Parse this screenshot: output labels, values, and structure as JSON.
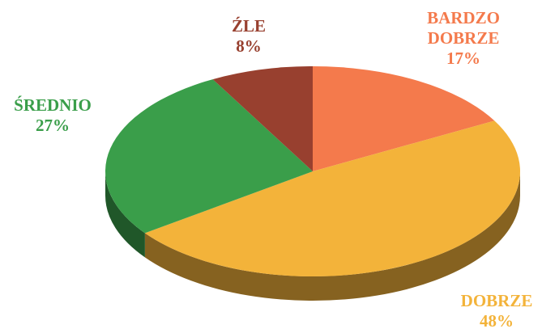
{
  "chart_data": {
    "type": "pie",
    "categories": [
      "BARDZO DOBRZE",
      "DOBRZE",
      "ŚREDNIO",
      "ŹLE"
    ],
    "values": [
      17,
      48,
      27,
      8
    ],
    "value_labels": [
      "17%",
      "48%",
      "27%",
      "8%"
    ],
    "colors": [
      "#f47a4c",
      "#f3b33a",
      "#3a9e4a",
      "#98402f"
    ]
  }
}
